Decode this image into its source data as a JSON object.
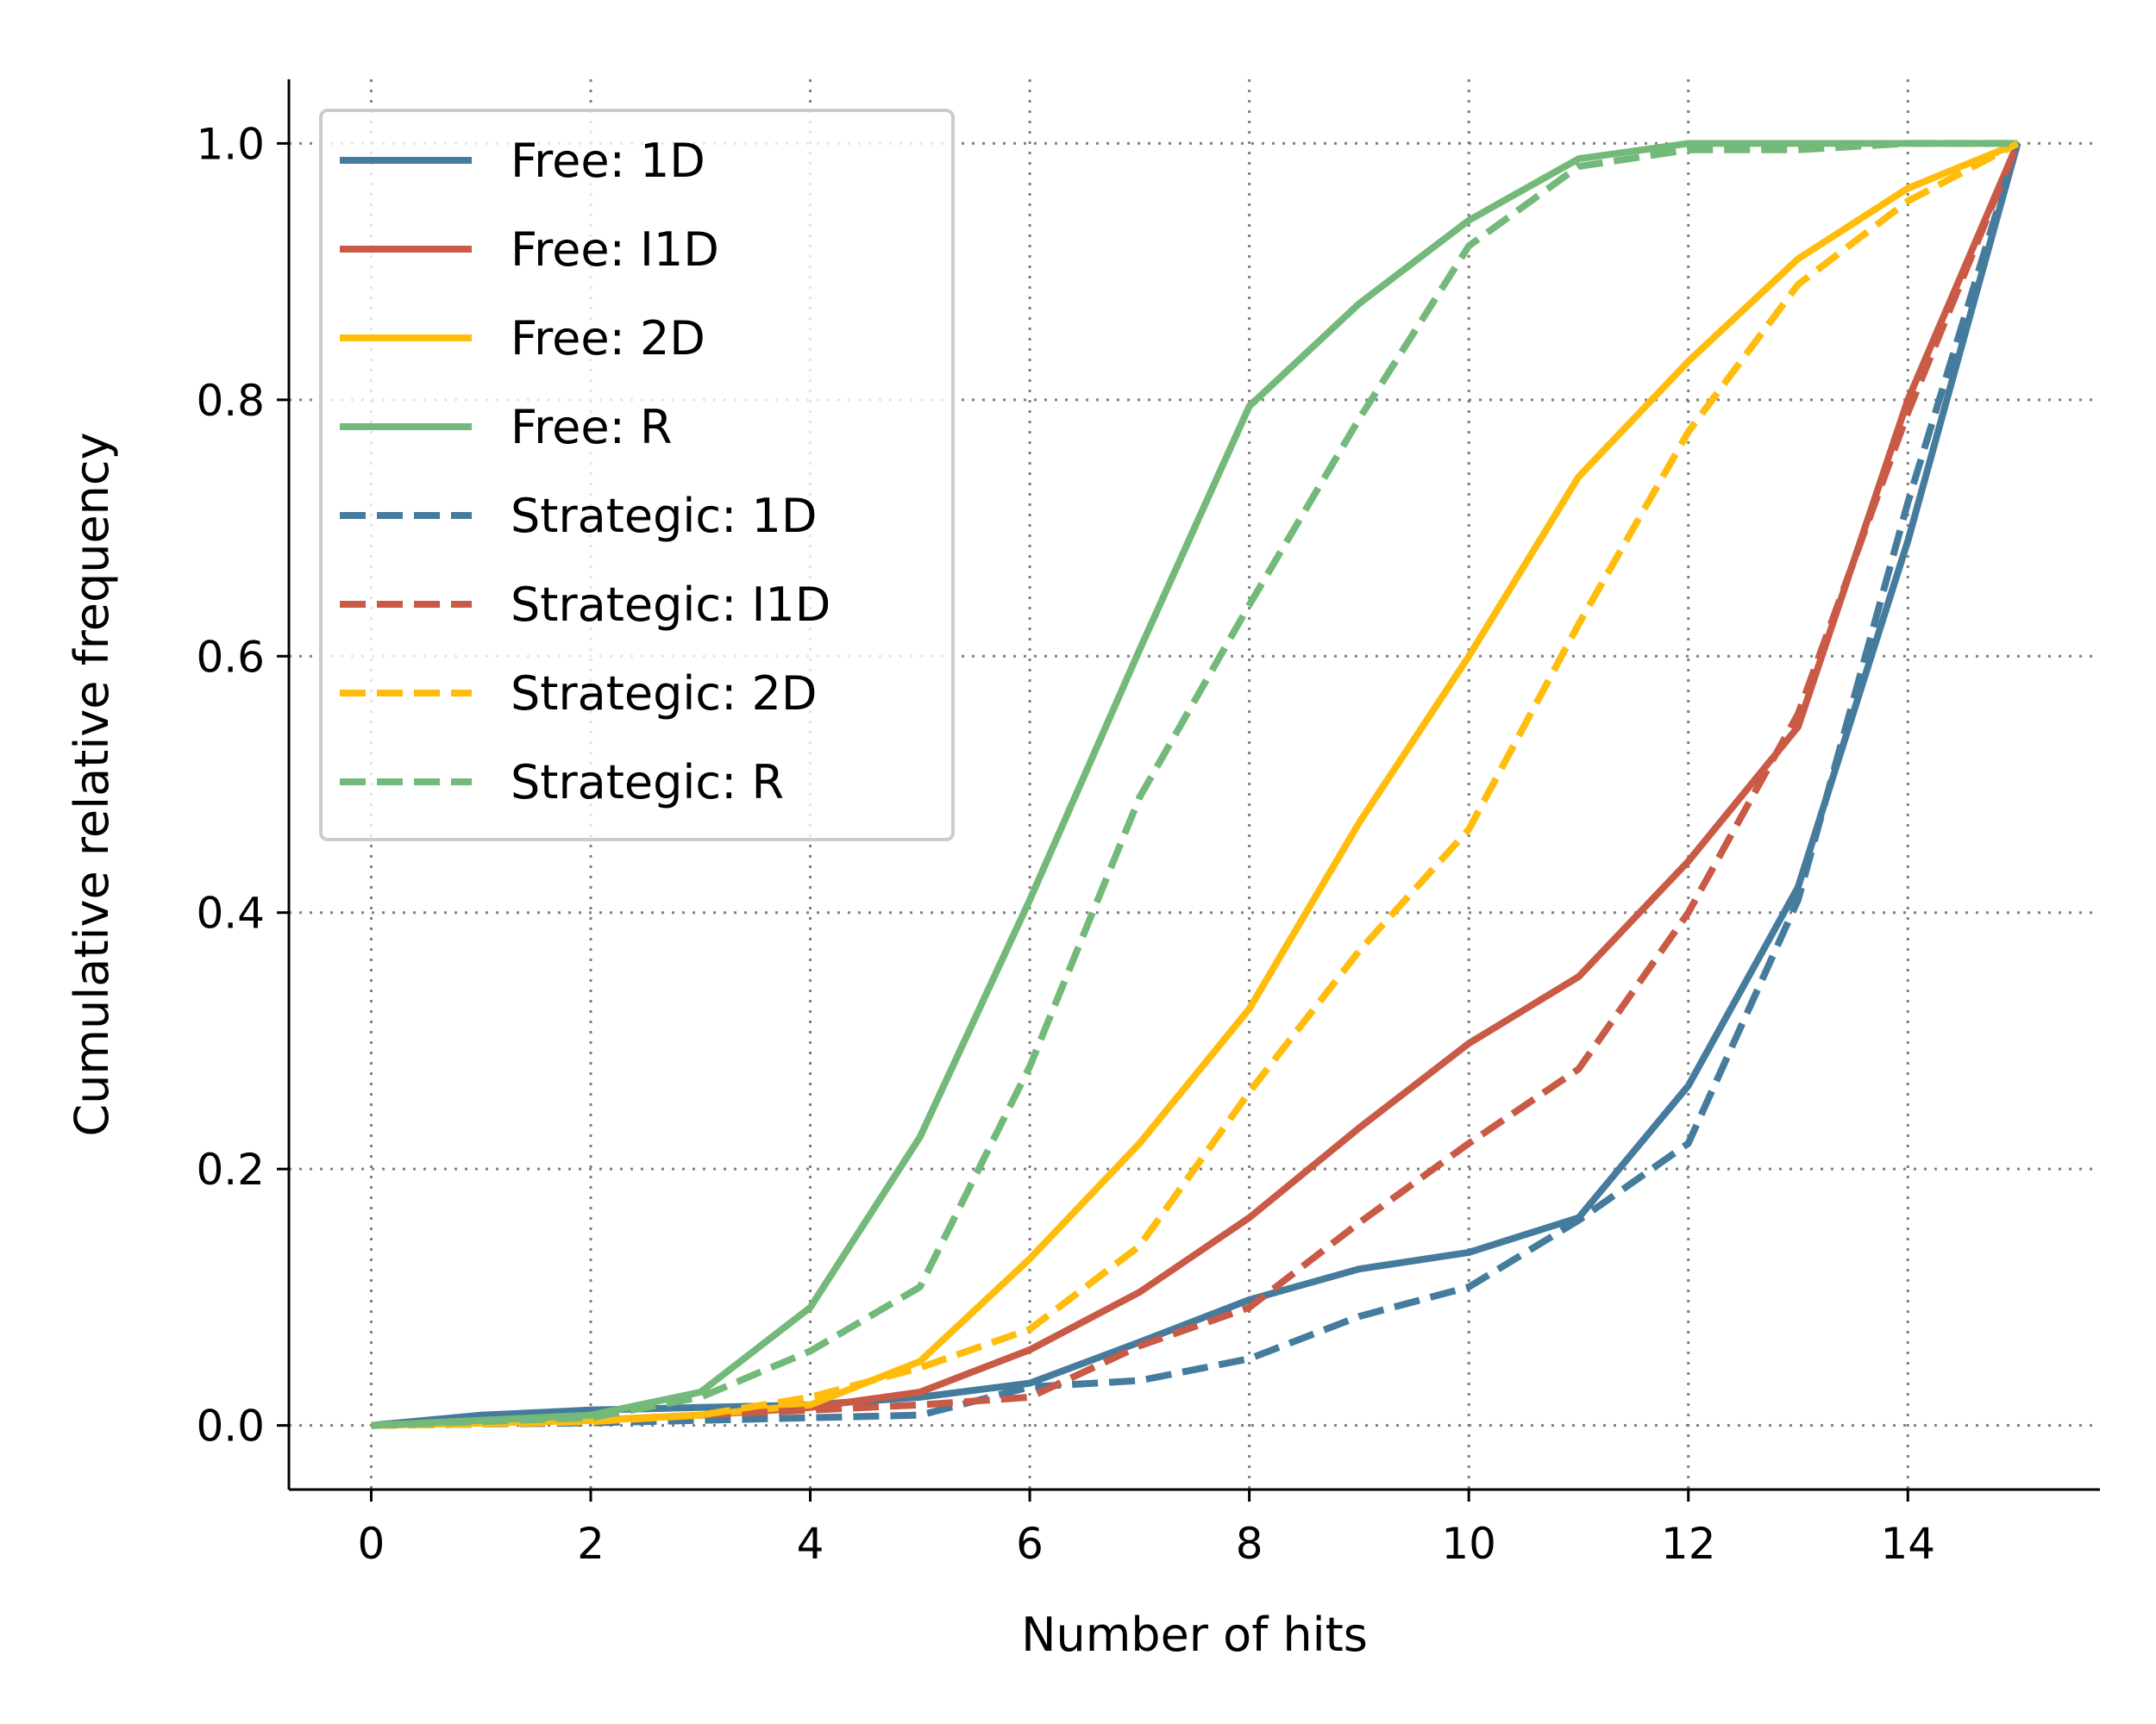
{
  "chart_data": {
    "type": "line",
    "title": "",
    "xlabel": "Number of hits",
    "ylabel": "Cumulative relative frequency",
    "xlim": [
      -0.75,
      15.75
    ],
    "ylim": [
      -0.05,
      1.05
    ],
    "x_ticks": [
      0,
      2,
      4,
      6,
      8,
      10,
      12,
      14
    ],
    "y_ticks": [
      0.0,
      0.2,
      0.4,
      0.6,
      0.8,
      1.0
    ],
    "x_tick_labels": [
      "0",
      "2",
      "4",
      "6",
      "8",
      "10",
      "12",
      "14"
    ],
    "y_tick_labels": [
      "0.0",
      "0.2",
      "0.4",
      "0.6",
      "0.8",
      "1.0"
    ],
    "grid": true,
    "legend_position": "top-left",
    "x": [
      0,
      1,
      2,
      3,
      4,
      5,
      6,
      7,
      8,
      9,
      10,
      11,
      12,
      13,
      14,
      15
    ],
    "series": [
      {
        "name": "Free: 1D",
        "style": "solid",
        "color": "#457b9d",
        "values": [
          0.0,
          0.008,
          0.012,
          0.014,
          0.016,
          0.022,
          0.033,
          0.065,
          0.098,
          0.122,
          0.135,
          0.162,
          0.265,
          0.42,
          0.69,
          1.0
        ]
      },
      {
        "name": "Free: I1D",
        "style": "solid",
        "color": "#c95a45",
        "values": [
          0.0,
          0.002,
          0.004,
          0.008,
          0.014,
          0.026,
          0.059,
          0.104,
          0.162,
          0.232,
          0.298,
          0.35,
          0.44,
          0.545,
          0.8,
          1.0
        ]
      },
      {
        "name": "Free: 2D",
        "style": "solid",
        "color": "#ffbc0a",
        "values": [
          0.0,
          0.002,
          0.004,
          0.008,
          0.016,
          0.05,
          0.13,
          0.22,
          0.325,
          0.47,
          0.6,
          0.74,
          0.83,
          0.91,
          0.965,
          1.0
        ]
      },
      {
        "name": "Free: R",
        "style": "solid",
        "color": "#73b979",
        "values": [
          0.0,
          0.004,
          0.008,
          0.026,
          0.092,
          0.225,
          0.41,
          0.605,
          0.795,
          0.875,
          0.94,
          0.988,
          1.0,
          1.0,
          1.0,
          1.0
        ]
      },
      {
        "name": "Strategic: 1D",
        "style": "dashed",
        "color": "#457b9d",
        "values": [
          0.0,
          0.001,
          0.002,
          0.004,
          0.006,
          0.008,
          0.03,
          0.035,
          0.052,
          0.085,
          0.108,
          0.16,
          0.22,
          0.41,
          0.72,
          1.0
        ]
      },
      {
        "name": "Strategic: I1D",
        "style": "dashed",
        "color": "#c95a45",
        "values": [
          0.0,
          0.001,
          0.003,
          0.008,
          0.012,
          0.016,
          0.022,
          0.062,
          0.092,
          0.158,
          0.22,
          0.278,
          0.4,
          0.555,
          0.79,
          1.0
        ]
      },
      {
        "name": "Strategic: 2D",
        "style": "dashed",
        "color": "#ffbc0a",
        "values": [
          0.0,
          0.001,
          0.003,
          0.008,
          0.022,
          0.045,
          0.075,
          0.14,
          0.26,
          0.37,
          0.465,
          0.625,
          0.775,
          0.89,
          0.955,
          1.0
        ]
      },
      {
        "name": "Strategic: R",
        "style": "dashed",
        "color": "#73b979",
        "values": [
          0.0,
          0.003,
          0.006,
          0.022,
          0.058,
          0.108,
          0.28,
          0.49,
          0.64,
          0.785,
          0.92,
          0.982,
          0.995,
          0.995,
          1.0,
          1.0
        ]
      }
    ]
  }
}
